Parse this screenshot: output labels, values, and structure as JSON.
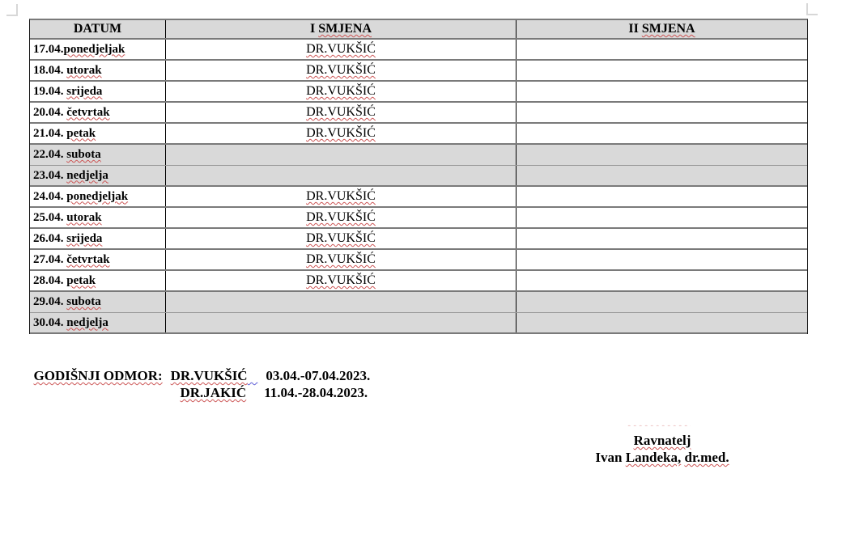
{
  "table": {
    "header": {
      "datum": "DATUM",
      "shift1_prefix": "I ",
      "shift1_word": "SMJENA",
      "shift2_prefix": "II ",
      "shift2_word": "SMJENA"
    },
    "rows": [
      {
        "num": "17.04.",
        "day": "ponedjeljak",
        "shift1": "DR.VUKŠIĆ",
        "shift2": "",
        "weekend": false
      },
      {
        "num": "18.04. ",
        "day": "utorak",
        "shift1": "DR.VUKŠIĆ",
        "shift2": "",
        "weekend": false
      },
      {
        "num": "19.04. ",
        "day": "srijeda",
        "shift1": "DR.VUKŠIĆ",
        "shift2": "",
        "weekend": false
      },
      {
        "num": "20.04. ",
        "day": "četvrtak",
        "shift1": "DR.VUKŠIĆ",
        "shift2": "",
        "weekend": false
      },
      {
        "num": "21.04. ",
        "day": "petak",
        "shift1": "DR.VUKŠIĆ",
        "shift2": "",
        "weekend": false
      },
      {
        "num": "22.04. ",
        "day": "subota",
        "shift1": "",
        "shift2": "",
        "weekend": true
      },
      {
        "num": "23.04. ",
        "day": "nedjelja",
        "shift1": "",
        "shift2": "",
        "weekend": true
      },
      {
        "num": "24.04. ",
        "day": "ponedjeljak",
        "shift1": "DR.VUKŠIĆ",
        "shift2": "",
        "weekend": false
      },
      {
        "num": "25.04. ",
        "day": "utorak",
        "shift1": "DR.VUKŠIĆ",
        "shift2": "",
        "weekend": false
      },
      {
        "num": "26.04. ",
        "day": "srijeda",
        "shift1": "DR.VUKŠIĆ",
        "shift2": "",
        "weekend": false
      },
      {
        "num": "27.04. ",
        "day": "četvrtak",
        "shift1": "DR.VUKŠIĆ",
        "shift2": "",
        "weekend": false
      },
      {
        "num": "28.04. ",
        "day": "petak",
        "shift1": "DR.VUKŠIĆ",
        "shift2": "",
        "weekend": false
      },
      {
        "num": "29.04. ",
        "day": "subota",
        "shift1": "",
        "shift2": "",
        "weekend": true
      },
      {
        "num": "30.04. ",
        "day": "nedjelja",
        "shift1": "",
        "shift2": "",
        "weekend": true
      }
    ]
  },
  "vacation": {
    "label": "GODIŠNJI ODMOR:",
    "entries": [
      {
        "doctor": "DR.VUKŠIĆ",
        "range": "03.04.-07.04.2023."
      },
      {
        "doctor": "DR.JAKIĆ",
        "range": "11.04.-28.04.2023."
      }
    ]
  },
  "signature": {
    "title": "Ravnatelj",
    "name_first": "Ivan",
    "name_last": "Landeka,",
    "name_degree": "dr.med."
  },
  "colors": {
    "header_fill": "#d9d9d9",
    "weekend_fill": "#d9d9d9",
    "border_gray": "#7a7a7a",
    "border_black": "#000000",
    "squiggle_red": "#cc5555",
    "squiggle_blue": "#5b5bd6"
  }
}
